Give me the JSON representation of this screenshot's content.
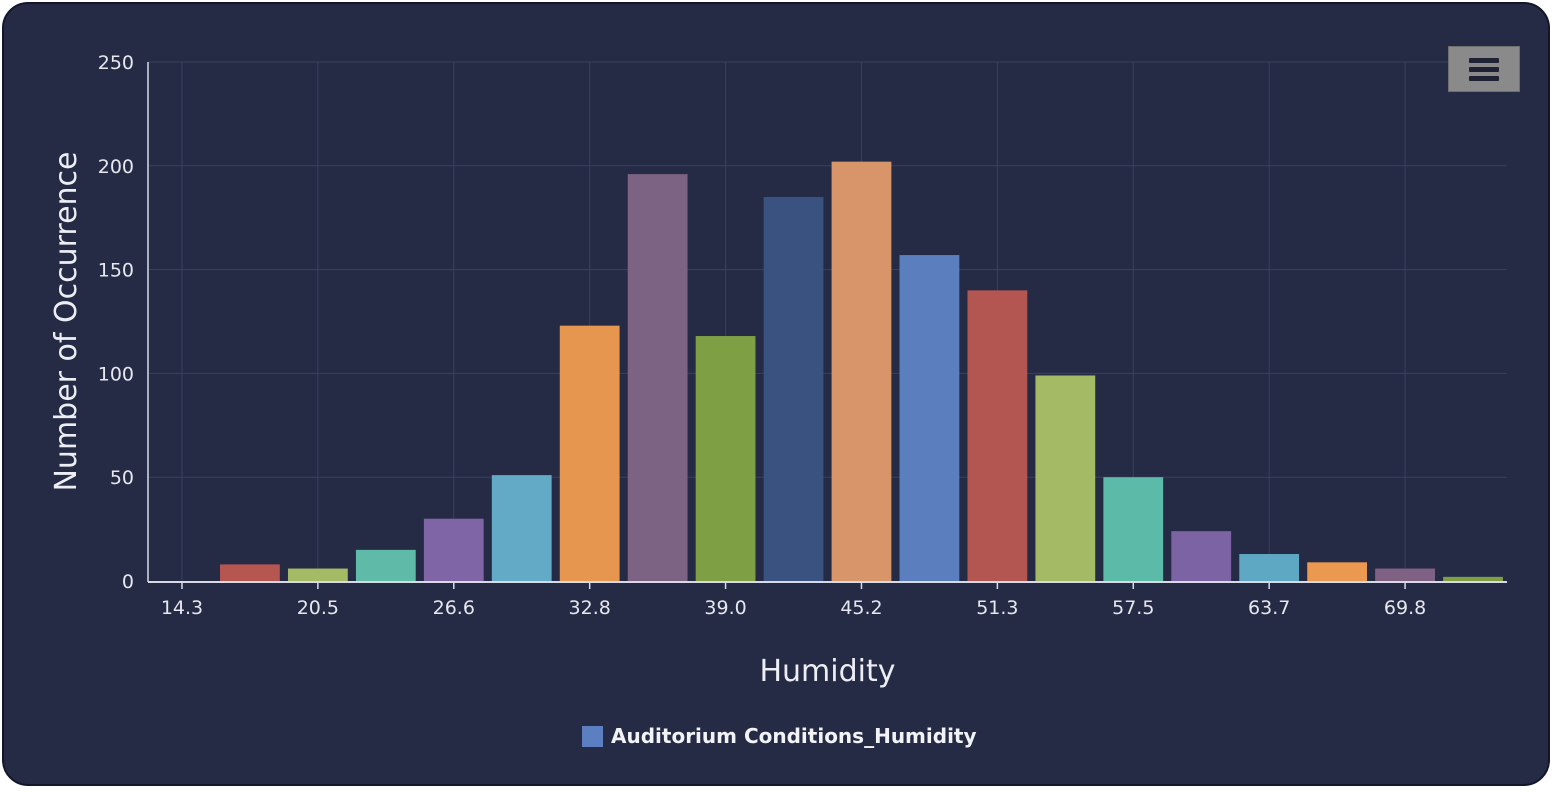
{
  "chart_data": {
    "type": "bar",
    "title": "",
    "xlabel": "Humidity",
    "ylabel": "Number of Occurrence",
    "ylim": [
      0,
      250
    ],
    "yticks": [
      0,
      50,
      100,
      150,
      200,
      250
    ],
    "x_tick_labels": [
      "14.3",
      "20.5",
      "26.6",
      "32.8",
      "39.0",
      "45.2",
      "51.3",
      "57.5",
      "63.7",
      "69.8"
    ],
    "values": [
      0,
      8,
      6,
      15,
      30,
      51,
      123,
      196,
      118,
      185,
      202,
      157,
      140,
      99,
      50,
      24,
      13,
      9,
      6,
      2
    ],
    "bar_colors": [
      "#5b7fc0",
      "#b65651",
      "#a4ba64",
      "#5fbaa8",
      "#7f65a6",
      "#63aac6",
      "#e7964f",
      "#7c6283",
      "#7f9f45",
      "#39527f",
      "#d9956a",
      "#5b7fbe",
      "#b35550",
      "#a5ba64",
      "#5cbaa8",
      "#7c63a3",
      "#5ea8c4",
      "#eb9850",
      "#7f6283",
      "#7f9f45"
    ],
    "legend": {
      "label": "Auditorium Conditions_Humidity",
      "color": "#5b7fc0",
      "position": "bottom-center"
    },
    "grid": true
  },
  "toolbar": {
    "menu_icon": "hamburger-menu-icon"
  }
}
